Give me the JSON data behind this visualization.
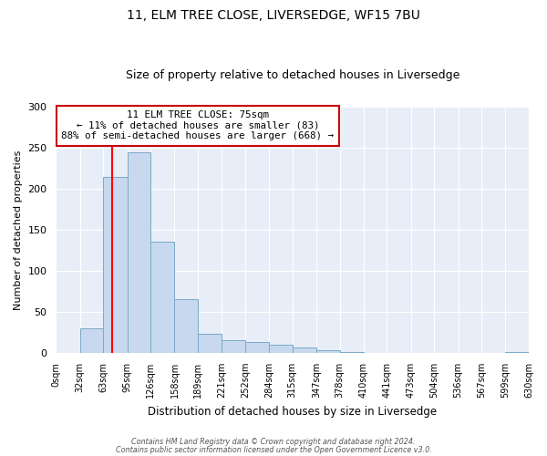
{
  "title": "11, ELM TREE CLOSE, LIVERSEDGE, WF15 7BU",
  "subtitle": "Size of property relative to detached houses in Liversedge",
  "xlabel": "Distribution of detached houses by size in Liversedge",
  "ylabel": "Number of detached properties",
  "bin_edges": [
    0,
    32,
    63,
    95,
    126,
    158,
    189,
    221,
    252,
    284,
    315,
    347,
    378,
    410,
    441,
    473,
    504,
    536,
    567,
    599,
    630
  ],
  "bar_heights": [
    0,
    30,
    215,
    245,
    135,
    65,
    23,
    16,
    13,
    10,
    7,
    3,
    1,
    0,
    0,
    0,
    0,
    0,
    0,
    1
  ],
  "bar_color": "#c8d8ee",
  "bar_edge_color": "#7aaac8",
  "bg_color": "#e8eef8",
  "grid_color": "#ffffff",
  "fig_bg_color": "#ffffff",
  "red_line_x": 75,
  "ylim": [
    0,
    300
  ],
  "yticks": [
    0,
    50,
    100,
    150,
    200,
    250,
    300
  ],
  "annotation_title": "11 ELM TREE CLOSE: 75sqm",
  "annotation_line1": "← 11% of detached houses are smaller (83)",
  "annotation_line2": "88% of semi-detached houses are larger (668) →",
  "annotation_box_color": "#cc0000",
  "footer_line1": "Contains HM Land Registry data © Crown copyright and database right 2024.",
  "footer_line2": "Contains public sector information licensed under the Open Government Licence v3.0."
}
